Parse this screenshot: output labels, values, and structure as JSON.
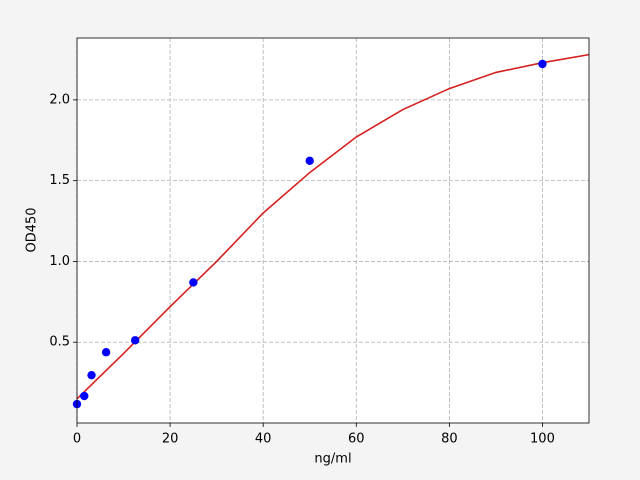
{
  "chart_data": {
    "type": "scatter",
    "xlabel": "ng/ml",
    "ylabel": "OD450",
    "xlim": [
      0,
      110
    ],
    "ylim": [
      0,
      2.383
    ],
    "xticks": [
      0,
      20,
      40,
      60,
      80,
      100
    ],
    "yticks": [
      0.5,
      {
        "value": 1.0,
        "label": "1.0"
      },
      1.5,
      {
        "value": 2.0,
        "label": "2.0"
      }
    ],
    "grid": true,
    "series": [
      {
        "type": "line",
        "color": "#d62020",
        "x": [
          0,
          10,
          20,
          30,
          40,
          50,
          60,
          70,
          80,
          90,
          100,
          110
        ],
        "values": [
          0.15,
          0.43,
          0.72,
          1.0,
          1.3,
          1.55,
          1.77,
          1.94,
          2.07,
          2.17,
          2.23,
          2.28
        ]
      },
      {
        "type": "scatter",
        "color": "#0000ff",
        "x": [
          0,
          1.56,
          3.125,
          6.25,
          12.5,
          25,
          50,
          100
        ],
        "values": [
          0.117,
          0.167,
          0.296,
          0.438,
          0.512,
          0.87,
          1.623,
          2.222
        ]
      }
    ]
  }
}
